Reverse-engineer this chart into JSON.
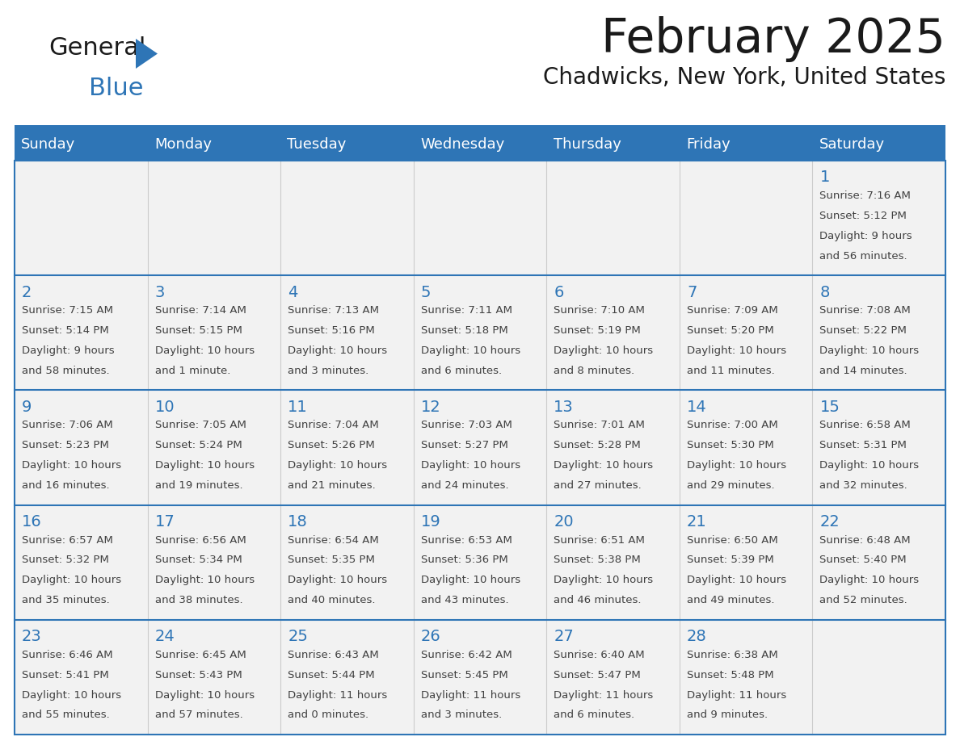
{
  "title": "February 2025",
  "subtitle": "Chadwicks, New York, United States",
  "header_bg": "#2e75b6",
  "header_text": "#ffffff",
  "cell_bg": "#f2f2f2",
  "border_color": "#2e75b6",
  "day_names": [
    "Sunday",
    "Monday",
    "Tuesday",
    "Wednesday",
    "Thursday",
    "Friday",
    "Saturday"
  ],
  "title_color": "#1a1a1a",
  "subtitle_color": "#1a1a1a",
  "day_number_color": "#2e75b6",
  "cell_text_color": "#404040",
  "calendar_data": [
    [
      null,
      null,
      null,
      null,
      null,
      null,
      {
        "day": 1,
        "sunrise": "7:16 AM",
        "sunset": "5:12 PM",
        "daylight_hrs": 9,
        "daylight_min": 56
      }
    ],
    [
      {
        "day": 2,
        "sunrise": "7:15 AM",
        "sunset": "5:14 PM",
        "daylight_hrs": 9,
        "daylight_min": 58
      },
      {
        "day": 3,
        "sunrise": "7:14 AM",
        "sunset": "5:15 PM",
        "daylight_hrs": 10,
        "daylight_min": 1,
        "daylight_unit": "minute"
      },
      {
        "day": 4,
        "sunrise": "7:13 AM",
        "sunset": "5:16 PM",
        "daylight_hrs": 10,
        "daylight_min": 3
      },
      {
        "day": 5,
        "sunrise": "7:11 AM",
        "sunset": "5:18 PM",
        "daylight_hrs": 10,
        "daylight_min": 6
      },
      {
        "day": 6,
        "sunrise": "7:10 AM",
        "sunset": "5:19 PM",
        "daylight_hrs": 10,
        "daylight_min": 8
      },
      {
        "day": 7,
        "sunrise": "7:09 AM",
        "sunset": "5:20 PM",
        "daylight_hrs": 10,
        "daylight_min": 11
      },
      {
        "day": 8,
        "sunrise": "7:08 AM",
        "sunset": "5:22 PM",
        "daylight_hrs": 10,
        "daylight_min": 14
      }
    ],
    [
      {
        "day": 9,
        "sunrise": "7:06 AM",
        "sunset": "5:23 PM",
        "daylight_hrs": 10,
        "daylight_min": 16
      },
      {
        "day": 10,
        "sunrise": "7:05 AM",
        "sunset": "5:24 PM",
        "daylight_hrs": 10,
        "daylight_min": 19
      },
      {
        "day": 11,
        "sunrise": "7:04 AM",
        "sunset": "5:26 PM",
        "daylight_hrs": 10,
        "daylight_min": 21
      },
      {
        "day": 12,
        "sunrise": "7:03 AM",
        "sunset": "5:27 PM",
        "daylight_hrs": 10,
        "daylight_min": 24
      },
      {
        "day": 13,
        "sunrise": "7:01 AM",
        "sunset": "5:28 PM",
        "daylight_hrs": 10,
        "daylight_min": 27
      },
      {
        "day": 14,
        "sunrise": "7:00 AM",
        "sunset": "5:30 PM",
        "daylight_hrs": 10,
        "daylight_min": 29
      },
      {
        "day": 15,
        "sunrise": "6:58 AM",
        "sunset": "5:31 PM",
        "daylight_hrs": 10,
        "daylight_min": 32
      }
    ],
    [
      {
        "day": 16,
        "sunrise": "6:57 AM",
        "sunset": "5:32 PM",
        "daylight_hrs": 10,
        "daylight_min": 35
      },
      {
        "day": 17,
        "sunrise": "6:56 AM",
        "sunset": "5:34 PM",
        "daylight_hrs": 10,
        "daylight_min": 38
      },
      {
        "day": 18,
        "sunrise": "6:54 AM",
        "sunset": "5:35 PM",
        "daylight_hrs": 10,
        "daylight_min": 40
      },
      {
        "day": 19,
        "sunrise": "6:53 AM",
        "sunset": "5:36 PM",
        "daylight_hrs": 10,
        "daylight_min": 43
      },
      {
        "day": 20,
        "sunrise": "6:51 AM",
        "sunset": "5:38 PM",
        "daylight_hrs": 10,
        "daylight_min": 46
      },
      {
        "day": 21,
        "sunrise": "6:50 AM",
        "sunset": "5:39 PM",
        "daylight_hrs": 10,
        "daylight_min": 49
      },
      {
        "day": 22,
        "sunrise": "6:48 AM",
        "sunset": "5:40 PM",
        "daylight_hrs": 10,
        "daylight_min": 52
      }
    ],
    [
      {
        "day": 23,
        "sunrise": "6:46 AM",
        "sunset": "5:41 PM",
        "daylight_hrs": 10,
        "daylight_min": 55
      },
      {
        "day": 24,
        "sunrise": "6:45 AM",
        "sunset": "5:43 PM",
        "daylight_hrs": 10,
        "daylight_min": 57
      },
      {
        "day": 25,
        "sunrise": "6:43 AM",
        "sunset": "5:44 PM",
        "daylight_hrs": 11,
        "daylight_min": 0
      },
      {
        "day": 26,
        "sunrise": "6:42 AM",
        "sunset": "5:45 PM",
        "daylight_hrs": 11,
        "daylight_min": 3
      },
      {
        "day": 27,
        "sunrise": "6:40 AM",
        "sunset": "5:47 PM",
        "daylight_hrs": 11,
        "daylight_min": 6
      },
      {
        "day": 28,
        "sunrise": "6:38 AM",
        "sunset": "5:48 PM",
        "daylight_hrs": 11,
        "daylight_min": 9
      },
      null
    ]
  ],
  "logo_general_color": "#1a1a1a",
  "logo_blue_color": "#2e75b6",
  "logo_triangle_color": "#2e75b6"
}
